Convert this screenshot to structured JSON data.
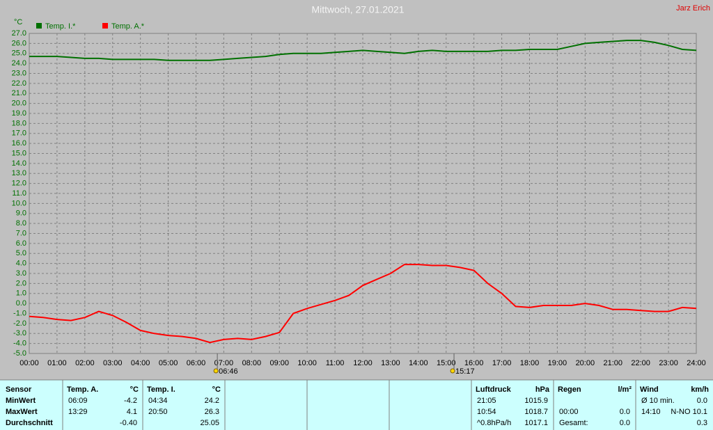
{
  "chart_data": {
    "type": "line",
    "title": "Mittwoch, 27.01.2021",
    "author": "Jarz Erich",
    "y_unit": "°C",
    "grid": true,
    "x": [
      0,
      0.5,
      1,
      1.5,
      2,
      2.5,
      3,
      3.5,
      4,
      4.5,
      5,
      5.5,
      6,
      6.5,
      7,
      7.5,
      8,
      8.5,
      9,
      9.5,
      10,
      10.5,
      11,
      11.5,
      12,
      12.5,
      13,
      13.5,
      14,
      14.5,
      15,
      15.5,
      16,
      16.5,
      17,
      17.5,
      18,
      18.5,
      19,
      19.5,
      20,
      20.5,
      21,
      21.5,
      22,
      22.5,
      23,
      23.5,
      24
    ],
    "series": [
      {
        "name": "Temp. I.*",
        "color": "#007000",
        "values": [
          24.7,
          24.7,
          24.7,
          24.6,
          24.5,
          24.5,
          24.4,
          24.4,
          24.4,
          24.4,
          24.3,
          24.3,
          24.3,
          24.3,
          24.4,
          24.5,
          24.6,
          24.7,
          24.9,
          25.0,
          25.0,
          25.0,
          25.1,
          25.2,
          25.3,
          25.2,
          25.1,
          25.0,
          25.2,
          25.3,
          25.2,
          25.2,
          25.2,
          25.2,
          25.3,
          25.3,
          25.4,
          25.4,
          25.4,
          25.7,
          26.0,
          26.1,
          26.2,
          26.3,
          26.3,
          26.1,
          25.8,
          25.4,
          25.3
        ]
      },
      {
        "name": "Temp. A.*",
        "color": "#ff0000",
        "values": [
          -1.3,
          -1.4,
          -1.6,
          -1.7,
          -1.4,
          -0.8,
          -1.2,
          -1.9,
          -2.7,
          -3.0,
          -3.2,
          -3.3,
          -3.5,
          -3.9,
          -3.6,
          -3.5,
          -3.6,
          -3.3,
          -2.9,
          -1.0,
          -0.5,
          -0.1,
          0.3,
          0.8,
          1.8,
          2.4,
          3.0,
          3.9,
          3.9,
          3.8,
          3.8,
          3.6,
          3.3,
          2.0,
          1.0,
          -0.3,
          -0.4,
          -0.2,
          -0.2,
          -0.2,
          0.0,
          -0.2,
          -0.6,
          -0.6,
          -0.7,
          -0.8,
          -0.8,
          -0.4,
          -0.5
        ]
      }
    ],
    "xlim": [
      0,
      24
    ],
    "xticks": [
      {
        "value": 0,
        "label": "00:00"
      },
      {
        "value": 1,
        "label": "01:00"
      },
      {
        "value": 2,
        "label": "02:00"
      },
      {
        "value": 3,
        "label": "03:00"
      },
      {
        "value": 4,
        "label": "04:00"
      },
      {
        "value": 5,
        "label": "05:00"
      },
      {
        "value": 6,
        "label": "06:00"
      },
      {
        "value": 7,
        "label": "07:00"
      },
      {
        "value": 8,
        "label": "08:00"
      },
      {
        "value": 9,
        "label": "09:00"
      },
      {
        "value": 10,
        "label": "10:00"
      },
      {
        "value": 11,
        "label": "11:00"
      },
      {
        "value": 12,
        "label": "12:00"
      },
      {
        "value": 13,
        "label": "13:00"
      },
      {
        "value": 14,
        "label": "14:00"
      },
      {
        "value": 15,
        "label": "15:00"
      },
      {
        "value": 16,
        "label": "16:00"
      },
      {
        "value": 17,
        "label": "17:00"
      },
      {
        "value": 18,
        "label": "18:00"
      },
      {
        "value": 19,
        "label": "19:00"
      },
      {
        "value": 20,
        "label": "20:00"
      },
      {
        "value": 21,
        "label": "21:00"
      },
      {
        "value": 22,
        "label": "22:00"
      },
      {
        "value": 23,
        "label": "23:00"
      },
      {
        "value": 24,
        "label": "24:00"
      }
    ],
    "ylim": [
      -5,
      27
    ],
    "yticks": [
      {
        "value": -5,
        "label": "-5.0"
      },
      {
        "value": -4,
        "label": "-4.0"
      },
      {
        "value": -3,
        "label": "-3.0"
      },
      {
        "value": -2,
        "label": "-2.0"
      },
      {
        "value": -1,
        "label": "-1.0"
      },
      {
        "value": 0,
        "label": "0.0"
      },
      {
        "value": 1,
        "label": "1.0"
      },
      {
        "value": 2,
        "label": "2.0"
      },
      {
        "value": 3,
        "label": "3.0"
      },
      {
        "value": 4,
        "label": "4.0"
      },
      {
        "value": 5,
        "label": "5.0"
      },
      {
        "value": 6,
        "label": "6.0"
      },
      {
        "value": 7,
        "label": "7.0"
      },
      {
        "value": 8,
        "label": "8.0"
      },
      {
        "value": 9,
        "label": "9.0"
      },
      {
        "value": 10,
        "label": "10.0"
      },
      {
        "value": 11,
        "label": "11.0"
      },
      {
        "value": 12,
        "label": "12.0"
      },
      {
        "value": 13,
        "label": "13.0"
      },
      {
        "value": 14,
        "label": "14.0"
      },
      {
        "value": 15,
        "label": "15.0"
      },
      {
        "value": 16,
        "label": "16.0"
      },
      {
        "value": 17,
        "label": "17.0"
      },
      {
        "value": 18,
        "label": "18.0"
      },
      {
        "value": 19,
        "label": "19.0"
      },
      {
        "value": 20,
        "label": "20.0"
      },
      {
        "value": 21,
        "label": "21.0"
      },
      {
        "value": 22,
        "label": "22.0"
      },
      {
        "value": 23,
        "label": "23.0"
      },
      {
        "value": 24,
        "label": "24.0"
      },
      {
        "value": 25,
        "label": "25.0"
      },
      {
        "value": 26,
        "label": "26.0"
      },
      {
        "value": 27,
        "label": "27.0"
      }
    ],
    "sun_events": [
      {
        "x": 6.767,
        "label": "06:46"
      },
      {
        "x": 15.283,
        "label": "15:17"
      }
    ]
  },
  "table": {
    "labels": [
      "Sensor",
      "MinWert",
      "MaxWert",
      "Durchschnitt"
    ],
    "blocks": [
      {
        "header": [
          "Temp. A.",
          "°C"
        ],
        "rows": [
          [
            "06:09",
            "-4.2"
          ],
          [
            "13:29",
            "4.1"
          ],
          [
            null,
            "-0.40"
          ]
        ]
      },
      {
        "header": [
          "Temp. I.",
          "°C"
        ],
        "rows": [
          [
            "04:34",
            "24.2"
          ],
          [
            "20:50",
            "26.3"
          ],
          [
            null,
            "25.05"
          ]
        ]
      },
      {
        "header": [
          "Luftdruck",
          "hPa"
        ],
        "rows": [
          [
            "21:05",
            "1015.9"
          ],
          [
            "10:54",
            "1018.7"
          ],
          [
            "^0.8hPa/h",
            "1017.1"
          ]
        ]
      },
      {
        "header": [
          "Regen",
          "l/m²"
        ],
        "rows": [
          [
            null,
            null
          ],
          [
            "00:00",
            "0.0"
          ],
          [
            "Gesamt:",
            "0.0"
          ]
        ]
      },
      {
        "header": [
          "Wind",
          "km/h"
        ],
        "rows": [
          [
            "Ø 10 min.",
            "0.0"
          ],
          [
            "14:10",
            "N-NO 10.1"
          ],
          [
            null,
            "0.3"
          ]
        ]
      }
    ]
  }
}
